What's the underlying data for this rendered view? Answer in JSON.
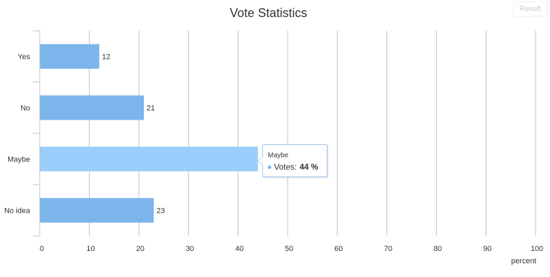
{
  "result_button": {
    "label": "Result"
  },
  "tooltip": {
    "title": "Maybe",
    "series_label": "Votes:",
    "value_text": "44 %"
  },
  "colors": {
    "bar": "#7cb5ec",
    "bar_hover": "#99cdfb",
    "grid": "#c0c0c0",
    "tooltip_border": "#9dc8f1"
  },
  "chart_data": {
    "type": "bar",
    "title": "Vote Statistics",
    "xlabel": "",
    "ylabel": "percent",
    "categories": [
      "Yes",
      "No",
      "Maybe",
      "No idea"
    ],
    "values": [
      12,
      21,
      44,
      23
    ],
    "data_labels": [
      "12",
      "21",
      "",
      "23"
    ],
    "ylim": [
      0,
      100
    ],
    "ticks": [
      0,
      10,
      20,
      30,
      40,
      50,
      60,
      70,
      80,
      90,
      100
    ],
    "highlighted_category": "Maybe",
    "grid": true,
    "legend": "none",
    "orientation": "horizontal"
  }
}
